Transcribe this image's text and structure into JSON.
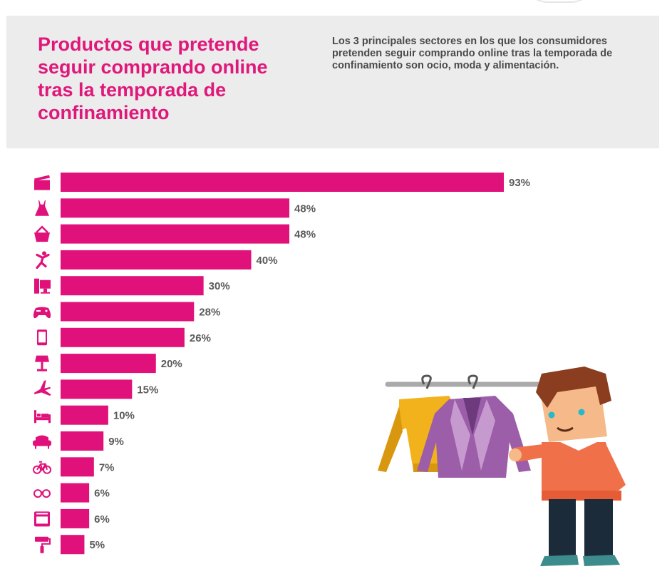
{
  "header": {
    "title": "Productos que pretende seguir comprando online tras la temporada de confinamiento",
    "subtitle": "Los 3 principales sectores en los que los consumidores pretenden seguir comprando online tras la temporada de confinamiento son ocio, moda y alimentación."
  },
  "colors": {
    "bar": "#e0117a",
    "title": "#e0187a",
    "header_bg": "#ececec",
    "icon": "#e0117a"
  },
  "chart_data": {
    "type": "bar",
    "orientation": "horizontal",
    "categories": [
      "clapperboard-icon",
      "dress-icon",
      "basket-icon",
      "dancer-icon",
      "computer-icon",
      "gamepad-icon",
      "smartphone-icon",
      "lamp-icon",
      "airplane-icon",
      "bed-icon",
      "sofa-icon",
      "bicycle-icon",
      "glasses-icon",
      "oven-icon",
      "paint-roller-icon"
    ],
    "values": [
      93,
      48,
      48,
      40,
      30,
      28,
      26,
      20,
      15,
      10,
      9,
      7,
      6,
      6,
      5
    ],
    "labels": [
      "93%",
      "48%",
      "48%",
      "40%",
      "30%",
      "28%",
      "26%",
      "20%",
      "15%",
      "10%",
      "9%",
      "7%",
      "6%",
      "6%",
      "5%"
    ],
    "unit": "%",
    "xlim": [
      0,
      100
    ],
    "grid": false,
    "legend": "none"
  }
}
